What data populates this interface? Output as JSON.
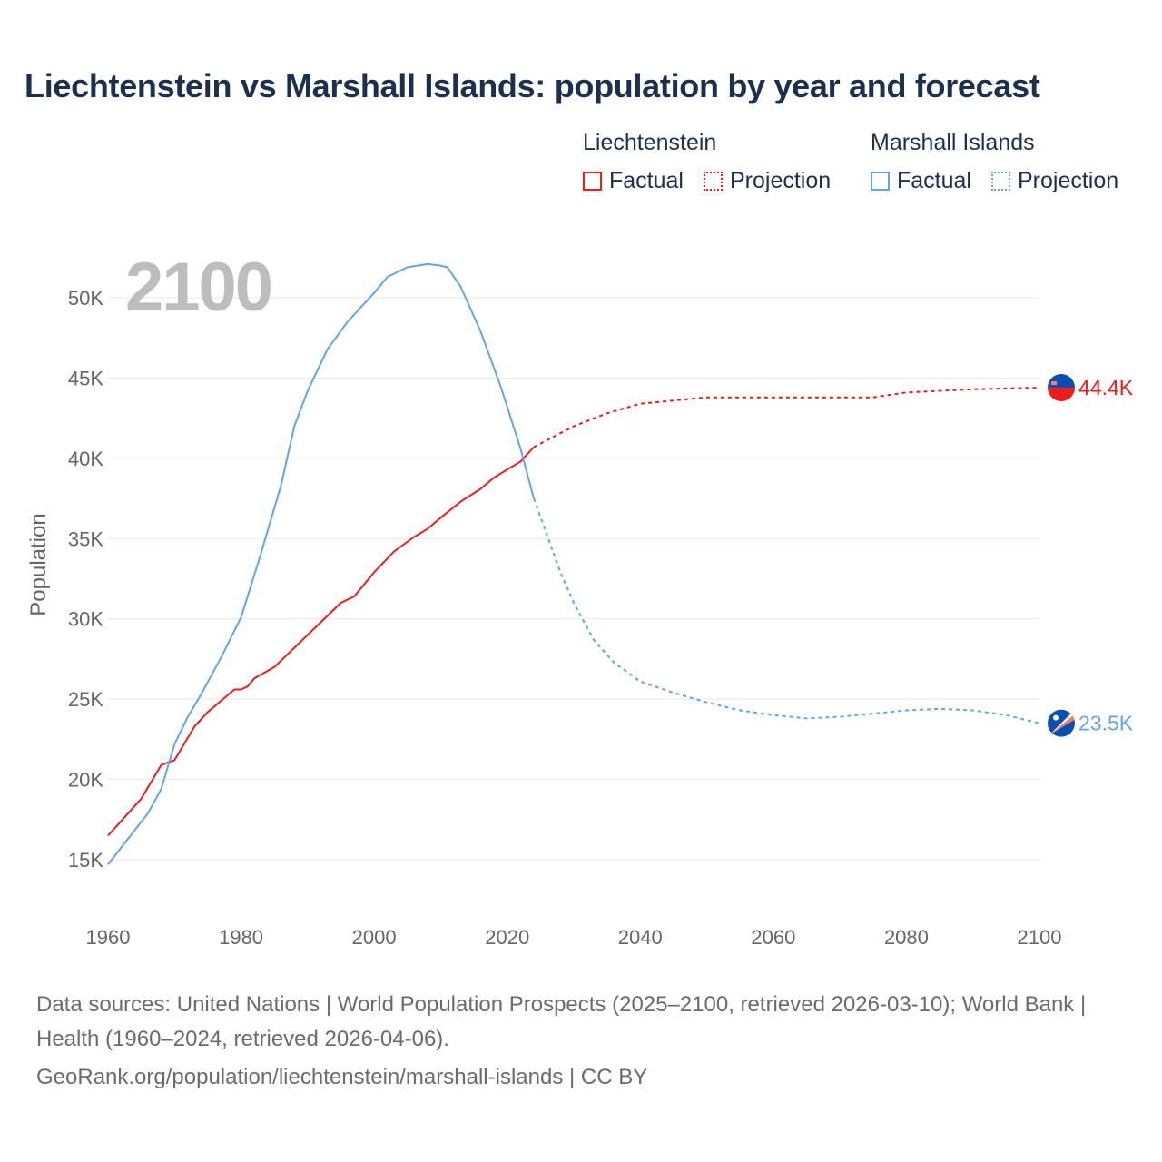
{
  "title": "Liechtenstein vs Marshall Islands: population by year and forecast",
  "legend": {
    "groups": [
      {
        "name": "Liechtenstein",
        "factual": "Factual",
        "projection": "Projection",
        "color": "#ee1c1c"
      },
      {
        "name": "Marshall Islands",
        "factual": "Factual",
        "projection": "Projection",
        "color": "#62a4e8"
      }
    ]
  },
  "footer": {
    "sources": "Data sources: United Nations | World Population Prospects (2025–2100, retrieved 2026-03-10); World Bank | Health (1960–2024, retrieved 2026-04-06).",
    "link": "GeoRank.org/population/liechtenstein/marshall-islands | CC BY"
  },
  "chart_data": {
    "type": "line",
    "title": "Liechtenstein vs Marshall Islands: population by year and forecast",
    "year_label": "2100",
    "xlabel": "",
    "ylabel": "Population",
    "xlim": [
      1960,
      2100
    ],
    "ylim": [
      12.5,
      52.5
    ],
    "x_ticks": [
      1960,
      1980,
      2000,
      2020,
      2040,
      2060,
      2080,
      2100
    ],
    "y_ticks": [
      15,
      20,
      25,
      30,
      35,
      40,
      45,
      50
    ],
    "y_tick_labels": [
      "15K",
      "20K",
      "25K",
      "30K",
      "35K",
      "40K",
      "45K",
      "50K"
    ],
    "grid": true,
    "legend_position": "top-right",
    "series": [
      {
        "name": "Liechtenstein",
        "color": "#ee1c1c",
        "end_label": "44.4K",
        "factual": [
          [
            1960,
            16.5
          ],
          [
            1965,
            18.8
          ],
          [
            1968,
            20.9
          ],
          [
            1970,
            21.2
          ],
          [
            1973,
            23.3
          ],
          [
            1975,
            24.2
          ],
          [
            1977,
            24.9
          ],
          [
            1979,
            25.6
          ],
          [
            1980,
            25.6
          ],
          [
            1981,
            25.8
          ],
          [
            1982,
            26.3
          ],
          [
            1985,
            27.0
          ],
          [
            1990,
            29.0
          ],
          [
            1995,
            31.0
          ],
          [
            1997,
            31.4
          ],
          [
            2000,
            32.9
          ],
          [
            2003,
            34.2
          ],
          [
            2006,
            35.1
          ],
          [
            2008,
            35.6
          ],
          [
            2010,
            36.3
          ],
          [
            2013,
            37.3
          ],
          [
            2016,
            38.1
          ],
          [
            2018,
            38.8
          ],
          [
            2020,
            39.3
          ],
          [
            2022,
            39.8
          ],
          [
            2024,
            40.7
          ]
        ],
        "projection": [
          [
            2024,
            40.7
          ],
          [
            2030,
            42.0
          ],
          [
            2035,
            42.8
          ],
          [
            2040,
            43.4
          ],
          [
            2050,
            43.8
          ],
          [
            2060,
            43.8
          ],
          [
            2070,
            43.8
          ],
          [
            2075,
            43.8
          ],
          [
            2080,
            44.1
          ],
          [
            2090,
            44.3
          ],
          [
            2100,
            44.4
          ]
        ]
      },
      {
        "name": "Marshall Islands",
        "color": "#62a4e8",
        "end_label": "23.5K",
        "factual": [
          [
            1960,
            14.7
          ],
          [
            1966,
            17.9
          ],
          [
            1968,
            19.4
          ],
          [
            1970,
            22.2
          ],
          [
            1972,
            23.9
          ],
          [
            1974,
            25.3
          ],
          [
            1977,
            27.6
          ],
          [
            1980,
            30.1
          ],
          [
            1983,
            34.1
          ],
          [
            1986,
            38.3
          ],
          [
            1988,
            42.0
          ],
          [
            1990,
            44.2
          ],
          [
            1993,
            46.8
          ],
          [
            1996,
            48.5
          ],
          [
            2000,
            50.3
          ],
          [
            2002,
            51.3
          ],
          [
            2005,
            51.9
          ],
          [
            2008,
            52.1
          ],
          [
            2010,
            52.0
          ],
          [
            2011,
            51.9
          ],
          [
            2013,
            50.7
          ],
          [
            2016,
            47.9
          ],
          [
            2019,
            44.5
          ],
          [
            2022,
            40.6
          ],
          [
            2024,
            37.5
          ]
        ],
        "projection": [
          [
            2024,
            37.5
          ],
          [
            2026,
            35.2
          ],
          [
            2028,
            32.9
          ],
          [
            2030,
            31.0
          ],
          [
            2033,
            28.7
          ],
          [
            2036,
            27.3
          ],
          [
            2040,
            26.1
          ],
          [
            2045,
            25.4
          ],
          [
            2050,
            24.8
          ],
          [
            2055,
            24.3
          ],
          [
            2060,
            24.0
          ],
          [
            2065,
            23.8
          ],
          [
            2070,
            23.9
          ],
          [
            2075,
            24.1
          ],
          [
            2080,
            24.3
          ],
          [
            2085,
            24.4
          ],
          [
            2090,
            24.3
          ],
          [
            2095,
            24.0
          ],
          [
            2100,
            23.5
          ]
        ]
      }
    ]
  }
}
